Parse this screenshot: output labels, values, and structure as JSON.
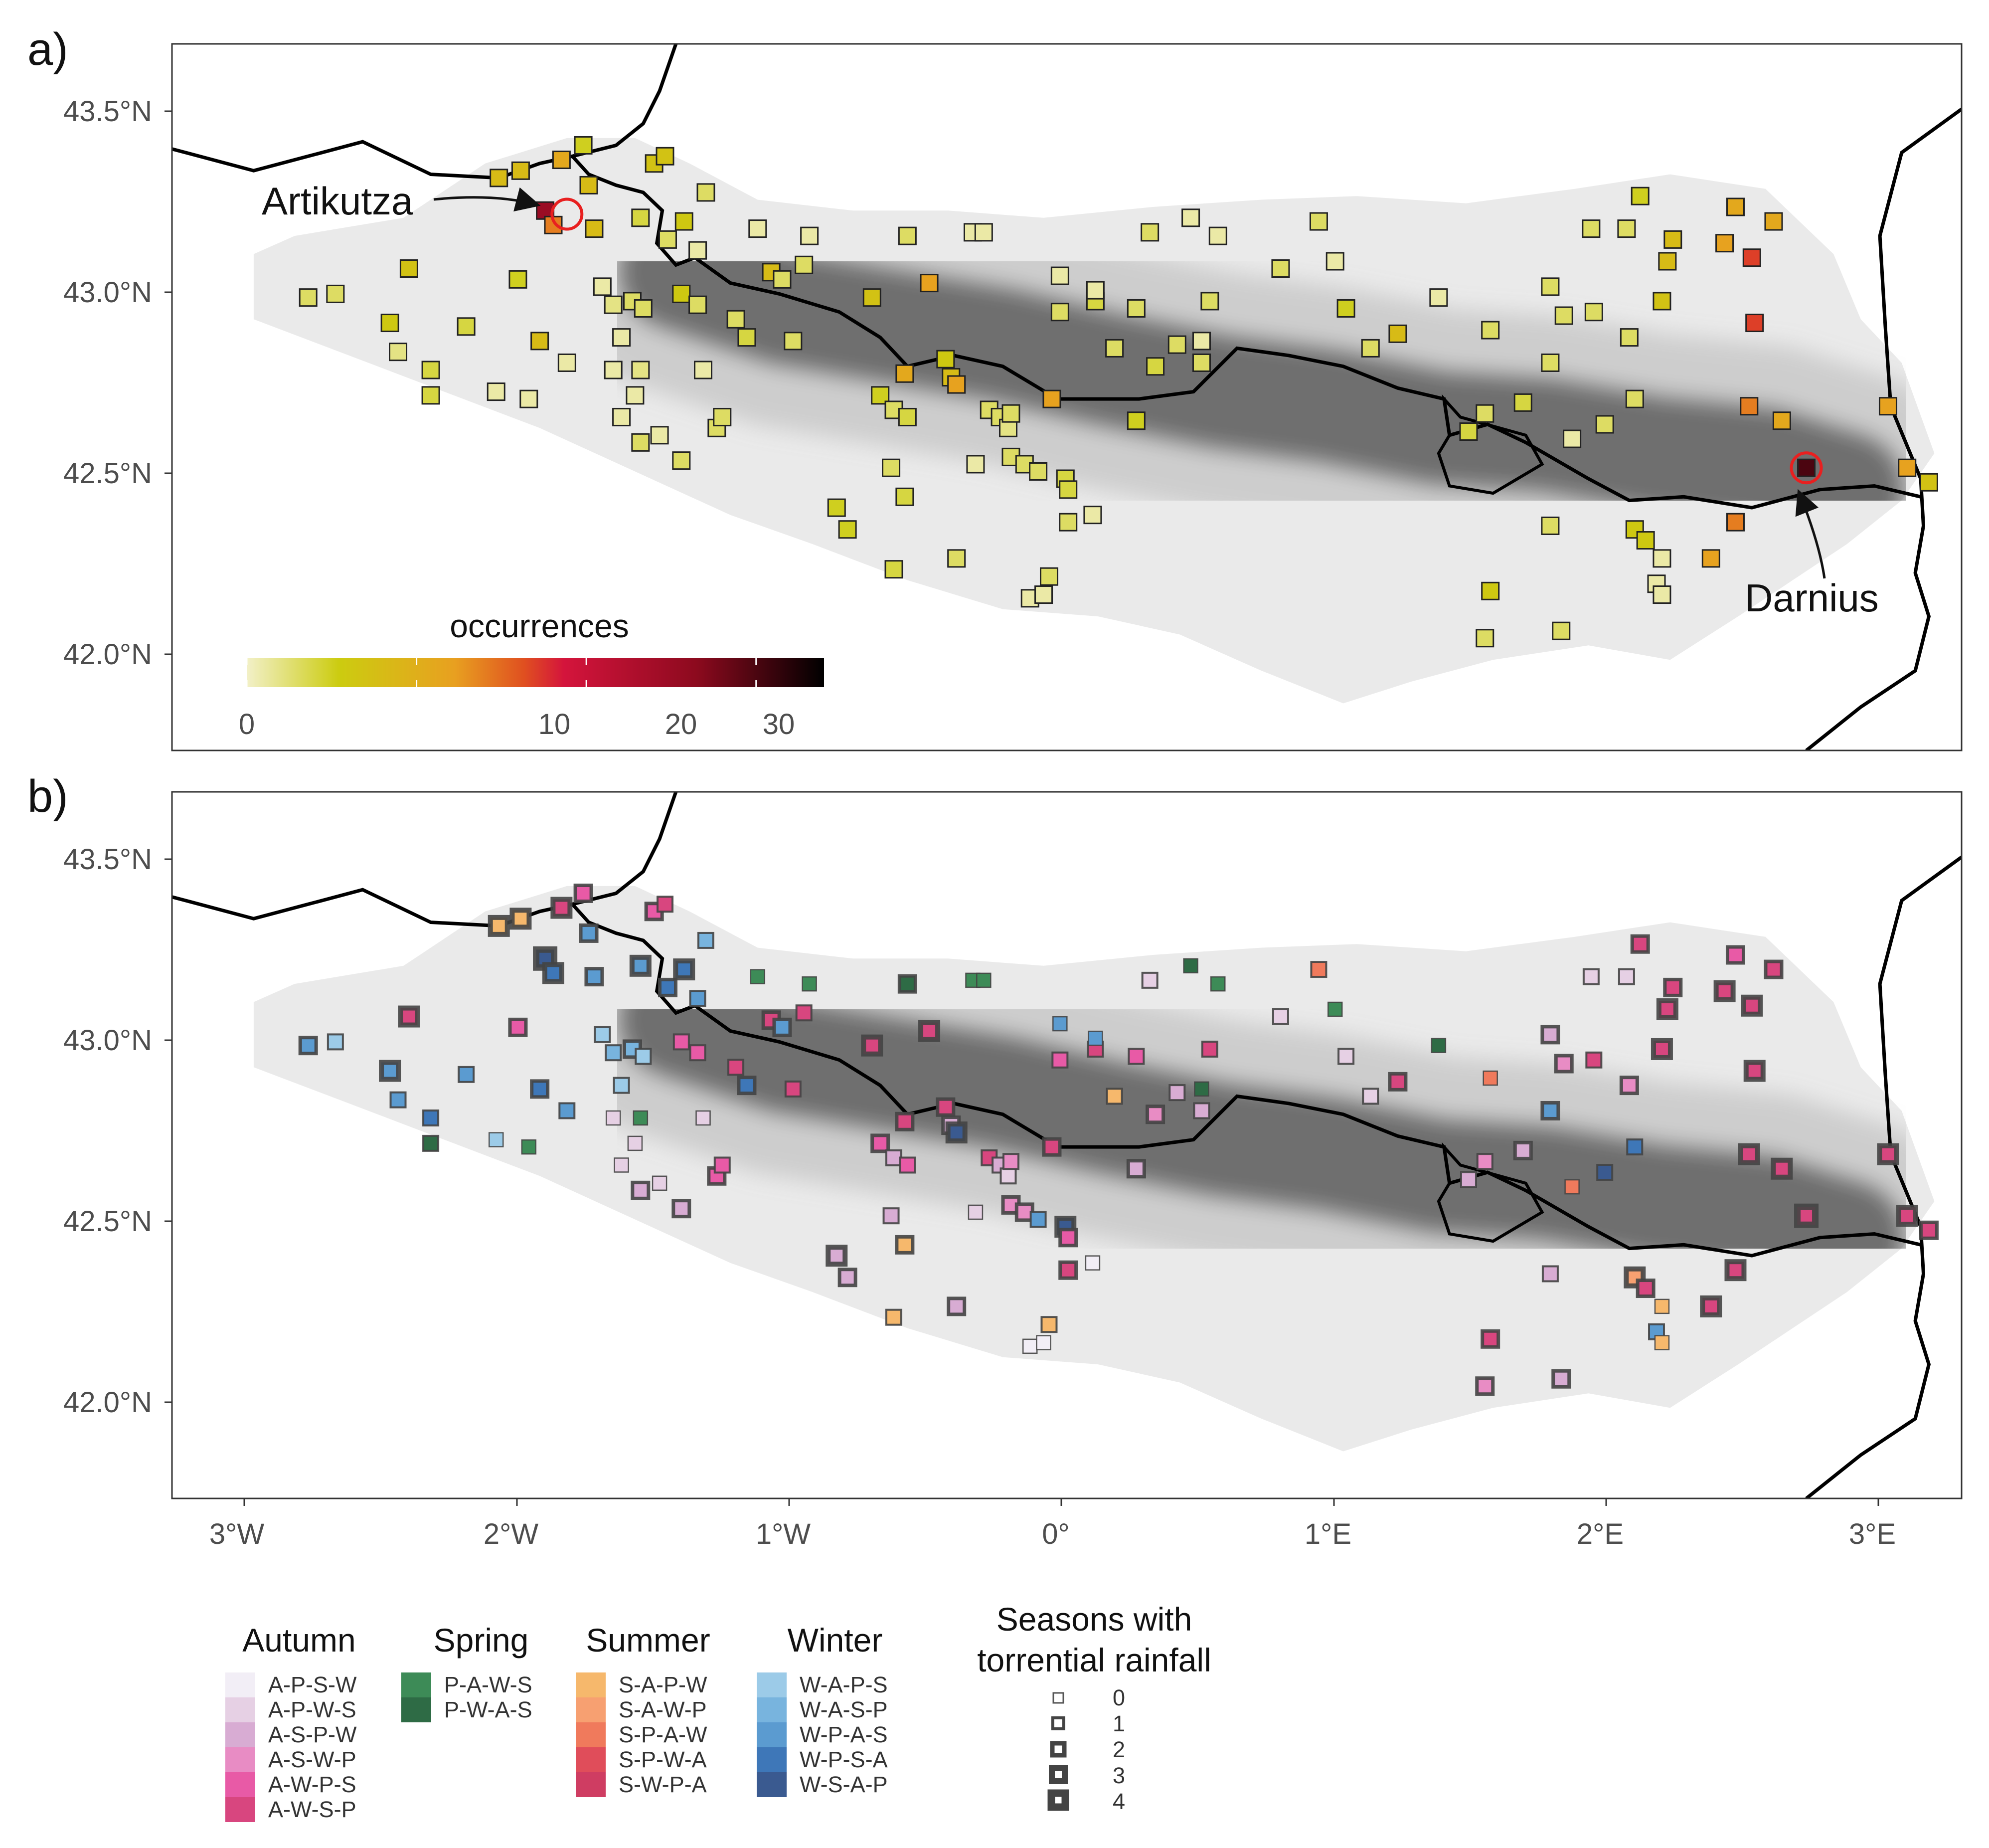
{
  "panels": [
    {
      "id": "a",
      "label": "a)"
    },
    {
      "id": "b",
      "label": "b)"
    }
  ],
  "axes": {
    "y_ticks": [
      "43.5°N",
      "43.0°N",
      "42.5°N",
      "42.0°N"
    ],
    "x_ticks": [
      "3°W",
      "2°W",
      "1°W",
      "0°",
      "1°E",
      "2°E",
      "3°E"
    ],
    "lon_range": [
      -3.25,
      3.32
    ],
    "lat_range": [
      41.73,
      43.68
    ]
  },
  "colorbar": {
    "title": "occurrences",
    "tick_labels": [
      "0",
      "10",
      "20",
      "30"
    ],
    "tick_values": [
      0,
      10,
      20,
      30
    ],
    "max": 34,
    "colors": [
      "#f2f0c8",
      "#cccc10",
      "#e8a020",
      "#e05020",
      "#d4143c",
      "#8c0a1e",
      "#000000"
    ]
  },
  "annotations": [
    {
      "name": "Artikutza",
      "lon": -1.8,
      "lat": 43.21
    },
    {
      "name": "Darnius",
      "lon": 2.75,
      "lat": 42.51
    }
  ],
  "season_legend": {
    "groups": [
      {
        "title": "Autumn",
        "items": [
          {
            "label": "A-P-S-W",
            "color": "#f2eef6"
          },
          {
            "label": "A-P-W-S",
            "color": "#e6d0e4"
          },
          {
            "label": "A-S-P-W",
            "color": "#d8acd3"
          },
          {
            "label": "A-S-W-P",
            "color": "#e88cc4"
          },
          {
            "label": "A-W-P-S",
            "color": "#e85aa6"
          },
          {
            "label": "A-W-S-P",
            "color": "#d8467f"
          }
        ]
      },
      {
        "title": "Spring",
        "items": [
          {
            "label": "P-A-W-S",
            "color": "#3d8b57"
          },
          {
            "label": "P-W-A-S",
            "color": "#2e6b45"
          }
        ]
      },
      {
        "title": "Summer",
        "items": [
          {
            "label": "S-A-P-W",
            "color": "#f6b86c"
          },
          {
            "label": "S-A-W-P",
            "color": "#f7a071"
          },
          {
            "label": "S-P-A-W",
            "color": "#f07a5c"
          },
          {
            "label": "S-P-W-A",
            "color": "#e04d5a"
          },
          {
            "label": "S-W-P-A",
            "color": "#cf3d62"
          }
        ]
      },
      {
        "title": "Winter",
        "items": [
          {
            "label": "W-A-P-S",
            "color": "#9ccbe8"
          },
          {
            "label": "W-A-S-P",
            "color": "#78b4de"
          },
          {
            "label": "W-P-A-S",
            "color": "#5b9bd0"
          },
          {
            "label": "W-P-S-A",
            "color": "#3e77b8"
          },
          {
            "label": "W-S-A-P",
            "color": "#3a5a90"
          }
        ]
      }
    ]
  },
  "size_legend": {
    "title_line1": "Seasons with",
    "title_line2": "torrential rainfall",
    "levels": [
      "0",
      "1",
      "2",
      "3",
      "4"
    ]
  },
  "stations": [
    {
      "lon": -2.75,
      "lat": 42.98,
      "occ": 3,
      "season": "W-P-A-S",
      "n": 2
    },
    {
      "lon": -2.65,
      "lat": 42.99,
      "occ": 3,
      "season": "W-A-P-S",
      "n": 1
    },
    {
      "lon": -2.45,
      "lat": 42.91,
      "occ": 6,
      "season": "W-P-A-S",
      "n": 3
    },
    {
      "lon": -2.38,
      "lat": 43.06,
      "occ": 7,
      "season": "A-W-S-P",
      "n": 3
    },
    {
      "lon": -2.42,
      "lat": 42.83,
      "occ": 2,
      "season": "W-P-A-S",
      "n": 1
    },
    {
      "lon": -2.3,
      "lat": 42.78,
      "occ": 4,
      "season": "W-P-S-A",
      "n": 1
    },
    {
      "lon": -2.3,
      "lat": 42.71,
      "occ": 4,
      "season": "P-W-A-S",
      "n": 1
    },
    {
      "lon": -2.17,
      "lat": 42.9,
      "occ": 4,
      "season": "W-P-A-S",
      "n": 1
    },
    {
      "lon": -2.06,
      "lat": 42.72,
      "occ": 1,
      "season": "W-A-P-S",
      "n": 0
    },
    {
      "lon": -1.98,
      "lat": 43.03,
      "occ": 5,
      "season": "A-W-P-S",
      "n": 2
    },
    {
      "lon": -1.94,
      "lat": 42.7,
      "occ": 1,
      "season": "P-A-W-S",
      "n": 0
    },
    {
      "lon": -2.05,
      "lat": 43.31,
      "occ": 8,
      "season": "S-A-P-W",
      "n": 3
    },
    {
      "lon": -1.97,
      "lat": 43.33,
      "occ": 8,
      "season": "S-A-P-W",
      "n": 3
    },
    {
      "lon": -1.9,
      "lat": 42.86,
      "occ": 8,
      "season": "W-P-S-A",
      "n": 2
    },
    {
      "lon": -1.82,
      "lat": 43.36,
      "occ": 11,
      "season": "A-W-S-P",
      "n": 3
    },
    {
      "lon": -1.74,
      "lat": 43.4,
      "occ": 5,
      "season": "A-W-P-S",
      "n": 2
    },
    {
      "lon": -1.88,
      "lat": 43.22,
      "occ": 25,
      "season": "W-S-A-P",
      "n": 4
    },
    {
      "lon": -1.85,
      "lat": 43.18,
      "occ": 14,
      "season": "W-P-S-A",
      "n": 3
    },
    {
      "lon": -1.72,
      "lat": 43.29,
      "occ": 8,
      "season": "W-P-A-S",
      "n": 2
    },
    {
      "lon": -1.7,
      "lat": 43.17,
      "occ": 8,
      "season": "W-P-A-S",
      "n": 2
    },
    {
      "lon": -1.8,
      "lat": 42.8,
      "occ": 1,
      "season": "W-P-A-S",
      "n": 1
    },
    {
      "lon": -1.67,
      "lat": 43.01,
      "occ": 1,
      "season": "W-A-P-S",
      "n": 1
    },
    {
      "lon": -1.63,
      "lat": 42.96,
      "occ": 2,
      "season": "W-A-S-P",
      "n": 1
    },
    {
      "lon": -1.6,
      "lat": 42.87,
      "occ": 1,
      "season": "W-A-P-S",
      "n": 1
    },
    {
      "lon": -1.56,
      "lat": 42.97,
      "occ": 3,
      "season": "W-A-S-P",
      "n": 2
    },
    {
      "lon": -1.52,
      "lat": 42.95,
      "occ": 3,
      "season": "W-A-P-S",
      "n": 1
    },
    {
      "lon": -1.63,
      "lat": 42.78,
      "occ": 1,
      "season": "A-P-W-S",
      "n": 0
    },
    {
      "lon": -1.55,
      "lat": 42.71,
      "occ": 1,
      "season": "A-P-W-S",
      "n": 0
    },
    {
      "lon": -1.53,
      "lat": 42.78,
      "occ": 2,
      "season": "P-A-W-S",
      "n": 0
    },
    {
      "lon": -1.6,
      "lat": 42.65,
      "occ": 1,
      "season": "A-P-W-S",
      "n": 0
    },
    {
      "lon": -1.53,
      "lat": 42.58,
      "occ": 3,
      "season": "A-S-P-W",
      "n": 2
    },
    {
      "lon": -1.46,
      "lat": 42.6,
      "occ": 1,
      "season": "A-P-W-S",
      "n": 0
    },
    {
      "lon": -1.38,
      "lat": 42.53,
      "occ": 3,
      "season": "A-S-P-W",
      "n": 2
    },
    {
      "lon": -1.3,
      "lat": 42.78,
      "occ": 1,
      "season": "A-P-W-S",
      "n": 0
    },
    {
      "lon": -1.48,
      "lat": 43.35,
      "occ": 7,
      "season": "A-W-P-S",
      "n": 2
    },
    {
      "lon": -1.44,
      "lat": 43.37,
      "occ": 7,
      "season": "A-W-S-P",
      "n": 1
    },
    {
      "lon": -1.53,
      "lat": 43.2,
      "occ": 4,
      "season": "W-P-A-S",
      "n": 3
    },
    {
      "lon": -1.43,
      "lat": 43.14,
      "occ": 3,
      "season": "W-P-S-A",
      "n": 2
    },
    {
      "lon": -1.37,
      "lat": 43.19,
      "occ": 6,
      "season": "W-P-S-A",
      "n": 3
    },
    {
      "lon": -1.38,
      "lat": 42.99,
      "occ": 6,
      "season": "A-W-P-S",
      "n": 1
    },
    {
      "lon": -1.32,
      "lat": 42.96,
      "occ": 3,
      "season": "A-W-P-S",
      "n": 1
    },
    {
      "lon": -1.29,
      "lat": 43.27,
      "occ": 3,
      "season": "W-A-S-P",
      "n": 1
    },
    {
      "lon": -1.32,
      "lat": 43.11,
      "occ": 1,
      "season": "W-P-A-S",
      "n": 1
    },
    {
      "lon": -1.25,
      "lat": 42.62,
      "occ": 3,
      "season": "A-W-P-S",
      "n": 2
    },
    {
      "lon": -1.23,
      "lat": 42.65,
      "occ": 3,
      "season": "A-W-P-S",
      "n": 1
    },
    {
      "lon": -1.18,
      "lat": 42.92,
      "occ": 3,
      "season": "A-W-S-P",
      "n": 1
    },
    {
      "lon": -1.14,
      "lat": 42.87,
      "occ": 4,
      "season": "W-P-S-A",
      "n": 2
    },
    {
      "lon": -1.1,
      "lat": 43.17,
      "occ": 1,
      "season": "P-A-W-S",
      "n": 0
    },
    {
      "lon": -1.05,
      "lat": 43.05,
      "occ": 8,
      "season": "A-W-S-P",
      "n": 2
    },
    {
      "lon": -1.01,
      "lat": 43.03,
      "occ": 3,
      "season": "W-P-A-S",
      "n": 2
    },
    {
      "lon": -0.97,
      "lat": 42.86,
      "occ": 3,
      "season": "A-W-S-P",
      "n": 1
    },
    {
      "lon": -0.93,
      "lat": 43.07,
      "occ": 3,
      "season": "A-W-S-P",
      "n": 1
    },
    {
      "lon": -0.91,
      "lat": 43.15,
      "occ": 1,
      "season": "P-A-W-S",
      "n": 0
    },
    {
      "lon": -0.81,
      "lat": 42.4,
      "occ": 5,
      "season": "A-S-P-W",
      "n": 3
    },
    {
      "lon": -0.77,
      "lat": 42.34,
      "occ": 5,
      "season": "A-S-P-W",
      "n": 2
    },
    {
      "lon": -0.68,
      "lat": 42.98,
      "occ": 7,
      "season": "A-W-S-P",
      "n": 3
    },
    {
      "lon": -0.65,
      "lat": 42.71,
      "occ": 5,
      "season": "A-W-P-S",
      "n": 2
    },
    {
      "lon": -0.6,
      "lat": 42.67,
      "occ": 3,
      "season": "A-S-P-W",
      "n": 1
    },
    {
      "lon": -0.6,
      "lat": 42.23,
      "occ": 4,
      "season": "S-A-P-W",
      "n": 1
    },
    {
      "lon": -0.61,
      "lat": 42.51,
      "occ": 3,
      "season": "A-S-P-W",
      "n": 1
    },
    {
      "lon": -0.56,
      "lat": 42.77,
      "occ": 11,
      "season": "A-W-S-P",
      "n": 2
    },
    {
      "lon": -0.56,
      "lat": 42.43,
      "occ": 4,
      "season": "S-A-P-W",
      "n": 2
    },
    {
      "lon": -0.55,
      "lat": 42.65,
      "occ": 4,
      "season": "A-W-P-S",
      "n": 1
    },
    {
      "lon": -0.55,
      "lat": 43.15,
      "occ": 3,
      "season": "P-W-A-S",
      "n": 2
    },
    {
      "lon": -0.47,
      "lat": 43.02,
      "occ": 12,
      "season": "A-W-S-P",
      "n": 3
    },
    {
      "lon": -0.41,
      "lat": 42.81,
      "occ": 6,
      "season": "A-W-S-P",
      "n": 2
    },
    {
      "lon": -0.39,
      "lat": 42.76,
      "occ": 8,
      "season": "A-S-P-W",
      "n": 2
    },
    {
      "lon": -0.37,
      "lat": 42.74,
      "occ": 12,
      "season": "W-S-A-P",
      "n": 3
    },
    {
      "lon": -0.37,
      "lat": 42.26,
      "occ": 3,
      "season": "A-S-P-W",
      "n": 2
    },
    {
      "lon": -0.31,
      "lat": 43.16,
      "occ": 1,
      "season": "P-A-W-S",
      "n": 0
    },
    {
      "lon": -0.27,
      "lat": 43.16,
      "occ": 1,
      "season": "P-A-W-S",
      "n": 0
    },
    {
      "lon": -0.3,
      "lat": 42.52,
      "occ": 1,
      "season": "A-P-W-S",
      "n": 0
    },
    {
      "lon": -0.25,
      "lat": 42.67,
      "occ": 3,
      "season": "A-W-S-P",
      "n": 1
    },
    {
      "lon": -0.21,
      "lat": 42.65,
      "occ": 3,
      "season": "A-S-P-W",
      "n": 1
    },
    {
      "lon": -0.18,
      "lat": 42.62,
      "occ": 2,
      "season": "A-P-W-S",
      "n": 1
    },
    {
      "lon": -0.17,
      "lat": 42.66,
      "occ": 3,
      "season": "A-S-W-P",
      "n": 1
    },
    {
      "lon": -0.17,
      "lat": 42.54,
      "occ": 3,
      "season": "A-S-W-P",
      "n": 2
    },
    {
      "lon": -0.12,
      "lat": 42.52,
      "occ": 3,
      "season": "A-S-W-P",
      "n": 2
    },
    {
      "lon": -0.07,
      "lat": 42.5,
      "occ": 3,
      "season": "W-P-A-S",
      "n": 1
    },
    {
      "lon": -0.1,
      "lat": 42.15,
      "occ": 1,
      "season": "A-P-S-W",
      "n": 0
    },
    {
      "lon": -0.05,
      "lat": 42.16,
      "occ": 1,
      "season": "A-P-S-W",
      "n": 0
    },
    {
      "lon": -0.03,
      "lat": 42.21,
      "occ": 3,
      "season": "S-A-P-W",
      "n": 1
    },
    {
      "lon": -0.02,
      "lat": 42.7,
      "occ": 12,
      "season": "A-W-S-P",
      "n": 2
    },
    {
      "lon": 0.03,
      "lat": 42.48,
      "occ": 4,
      "season": "W-S-A-P",
      "n": 3
    },
    {
      "lon": 0.04,
      "lat": 42.45,
      "occ": 4,
      "season": "A-W-P-S",
      "n": 2
    },
    {
      "lon": 0.04,
      "lat": 42.36,
      "occ": 3,
      "season": "A-W-S-P",
      "n": 2
    },
    {
      "lon": 0.01,
      "lat": 42.94,
      "occ": 3,
      "season": "A-W-P-S",
      "n": 1
    },
    {
      "lon": 0.01,
      "lat": 43.04,
      "occ": 1,
      "season": "W-P-A-S",
      "n": 0
    },
    {
      "lon": 0.13,
      "lat": 42.38,
      "occ": 1,
      "season": "A-P-S-W",
      "n": 0
    },
    {
      "lon": 0.14,
      "lat": 42.97,
      "occ": 4,
      "season": "A-W-S-P",
      "n": 1
    },
    {
      "lon": 0.14,
      "lat": 43.0,
      "occ": 1,
      "season": "W-P-A-S",
      "n": 0
    },
    {
      "lon": 0.21,
      "lat": 42.84,
      "occ": 3,
      "season": "S-A-P-W",
      "n": 1
    },
    {
      "lon": 0.29,
      "lat": 42.95,
      "occ": 3,
      "season": "A-W-P-S",
      "n": 1
    },
    {
      "lon": 0.29,
      "lat": 42.64,
      "occ": 5,
      "season": "A-S-P-W",
      "n": 2
    },
    {
      "lon": 0.34,
      "lat": 43.16,
      "occ": 3,
      "season": "A-P-W-S",
      "n": 1
    },
    {
      "lon": 0.36,
      "lat": 42.79,
      "occ": 4,
      "season": "A-S-W-P",
      "n": 2
    },
    {
      "lon": 0.44,
      "lat": 42.85,
      "occ": 3,
      "season": "A-S-P-W",
      "n": 1
    },
    {
      "lon": 0.49,
      "lat": 43.2,
      "occ": 1,
      "season": "P-W-A-S",
      "n": 0
    },
    {
      "lon": 0.53,
      "lat": 42.86,
      "occ": 1,
      "season": "P-W-A-S",
      "n": 0
    },
    {
      "lon": 0.53,
      "lat": 42.8,
      "occ": 3,
      "season": "A-S-P-W",
      "n": 1
    },
    {
      "lon": 0.56,
      "lat": 42.97,
      "occ": 3,
      "season": "A-W-S-P",
      "n": 1
    },
    {
      "lon": 0.59,
      "lat": 43.15,
      "occ": 1,
      "season": "P-A-W-S",
      "n": 0
    },
    {
      "lon": 0.82,
      "lat": 43.06,
      "occ": 3,
      "season": "A-P-W-S",
      "n": 1
    },
    {
      "lon": 0.96,
      "lat": 43.19,
      "occ": 3,
      "season": "S-P-A-W",
      "n": 1
    },
    {
      "lon": 1.02,
      "lat": 43.08,
      "occ": 1,
      "season": "P-A-W-S",
      "n": 0
    },
    {
      "lon": 1.06,
      "lat": 42.95,
      "occ": 5,
      "season": "A-P-W-S",
      "n": 1
    },
    {
      "lon": 1.15,
      "lat": 42.84,
      "occ": 3,
      "season": "A-P-W-S",
      "n": 1
    },
    {
      "lon": 1.25,
      "lat": 42.88,
      "occ": 8,
      "season": "A-W-S-P",
      "n": 2
    },
    {
      "lon": 1.4,
      "lat": 42.98,
      "occ": 1,
      "season": "P-W-A-S",
      "n": 0
    },
    {
      "lon": 1.51,
      "lat": 42.61,
      "occ": 4,
      "season": "A-S-P-W",
      "n": 1
    },
    {
      "lon": 1.57,
      "lat": 42.66,
      "occ": 3,
      "season": "A-S-W-P",
      "n": 1
    },
    {
      "lon": 1.59,
      "lat": 42.89,
      "occ": 3,
      "season": "S-P-A-W",
      "n": 0
    },
    {
      "lon": 1.59,
      "lat": 42.17,
      "occ": 6,
      "season": "A-W-S-P",
      "n": 2
    },
    {
      "lon": 1.57,
      "lat": 42.04,
      "occ": 3,
      "season": "A-S-W-P",
      "n": 2
    },
    {
      "lon": 1.71,
      "lat": 42.69,
      "occ": 4,
      "season": "A-S-P-W",
      "n": 2
    },
    {
      "lon": 1.81,
      "lat": 42.35,
      "occ": 3,
      "season": "A-S-P-W",
      "n": 1
    },
    {
      "lon": 1.81,
      "lat": 42.8,
      "occ": 3,
      "season": "W-P-A-S",
      "n": 2
    },
    {
      "lon": 1.81,
      "lat": 43.01,
      "occ": 3,
      "season": "A-S-P-W",
      "n": 2
    },
    {
      "lon": 1.85,
      "lat": 42.06,
      "occ": 3,
      "season": "A-S-P-W",
      "n": 2
    },
    {
      "lon": 1.86,
      "lat": 42.93,
      "occ": 3,
      "season": "A-S-W-P",
      "n": 2
    },
    {
      "lon": 1.89,
      "lat": 42.59,
      "occ": 1,
      "season": "S-P-A-W",
      "n": 0
    },
    {
      "lon": 1.96,
      "lat": 43.17,
      "occ": 3,
      "season": "A-P-W-S",
      "n": 1
    },
    {
      "lon": 1.97,
      "lat": 42.94,
      "occ": 3,
      "season": "A-W-S-P",
      "n": 1
    },
    {
      "lon": 2.01,
      "lat": 42.63,
      "occ": 3,
      "season": "W-S-A-P",
      "n": 1
    },
    {
      "lon": 2.09,
      "lat": 43.17,
      "occ": 3,
      "season": "A-P-W-S",
      "n": 1
    },
    {
      "lon": 2.1,
      "lat": 42.87,
      "occ": 3,
      "season": "A-S-W-P",
      "n": 2
    },
    {
      "lon": 2.12,
      "lat": 42.7,
      "occ": 3,
      "season": "W-P-S-A",
      "n": 1
    },
    {
      "lon": 2.12,
      "lat": 42.34,
      "occ": 6,
      "season": "S-A-W-P",
      "n": 3
    },
    {
      "lon": 2.16,
      "lat": 42.31,
      "occ": 6,
      "season": "A-W-S-P",
      "n": 2
    },
    {
      "lon": 2.14,
      "lat": 43.26,
      "occ": 5,
      "season": "A-W-S-P",
      "n": 2
    },
    {
      "lon": 2.22,
      "lat": 42.26,
      "occ": 1,
      "season": "S-A-P-W",
      "n": 0
    },
    {
      "lon": 2.2,
      "lat": 42.19,
      "occ": 1,
      "season": "W-P-A-S",
      "n": 1
    },
    {
      "lon": 2.22,
      "lat": 42.16,
      "occ": 1,
      "season": "S-A-P-W",
      "n": 0
    },
    {
      "lon": 2.22,
      "lat": 42.97,
      "occ": 7,
      "season": "A-W-S-P",
      "n": 3
    },
    {
      "lon": 2.24,
      "lat": 43.08,
      "occ": 8,
      "season": "A-W-S-P",
      "n": 3
    },
    {
      "lon": 2.26,
      "lat": 43.14,
      "occ": 8,
      "season": "A-W-S-P",
      "n": 2
    },
    {
      "lon": 2.4,
      "lat": 42.26,
      "occ": 12,
      "season": "A-W-S-P",
      "n": 3
    },
    {
      "lon": 2.45,
      "lat": 43.13,
      "occ": 12,
      "season": "A-W-S-P",
      "n": 3
    },
    {
      "lon": 2.49,
      "lat": 43.23,
      "occ": 11,
      "season": "A-W-P-S",
      "n": 2
    },
    {
      "lon": 2.49,
      "lat": 42.36,
      "occ": 14,
      "season": "A-W-S-P",
      "n": 3
    },
    {
      "lon": 2.54,
      "lat": 42.68,
      "occ": 14,
      "season": "A-W-S-P",
      "n": 3
    },
    {
      "lon": 2.55,
      "lat": 43.09,
      "occ": 17,
      "season": "A-W-S-P",
      "n": 3
    },
    {
      "lon": 2.56,
      "lat": 42.91,
      "occ": 17,
      "season": "A-W-S-P",
      "n": 3
    },
    {
      "lon": 2.63,
      "lat": 43.19,
      "occ": 11,
      "season": "A-W-S-P",
      "n": 2
    },
    {
      "lon": 2.66,
      "lat": 42.64,
      "occ": 11,
      "season": "A-W-S-P",
      "n": 3
    },
    {
      "lon": 2.75,
      "lat": 42.51,
      "occ": 30,
      "season": "A-W-S-P",
      "n": 4
    },
    {
      "lon": 3.05,
      "lat": 42.68,
      "occ": 12,
      "season": "A-W-S-P",
      "n": 3
    },
    {
      "lon": 3.12,
      "lat": 42.51,
      "occ": 12,
      "season": "A-W-S-P",
      "n": 3
    },
    {
      "lon": 3.2,
      "lat": 42.47,
      "occ": 7,
      "season": "A-W-S-P",
      "n": 2
    }
  ]
}
